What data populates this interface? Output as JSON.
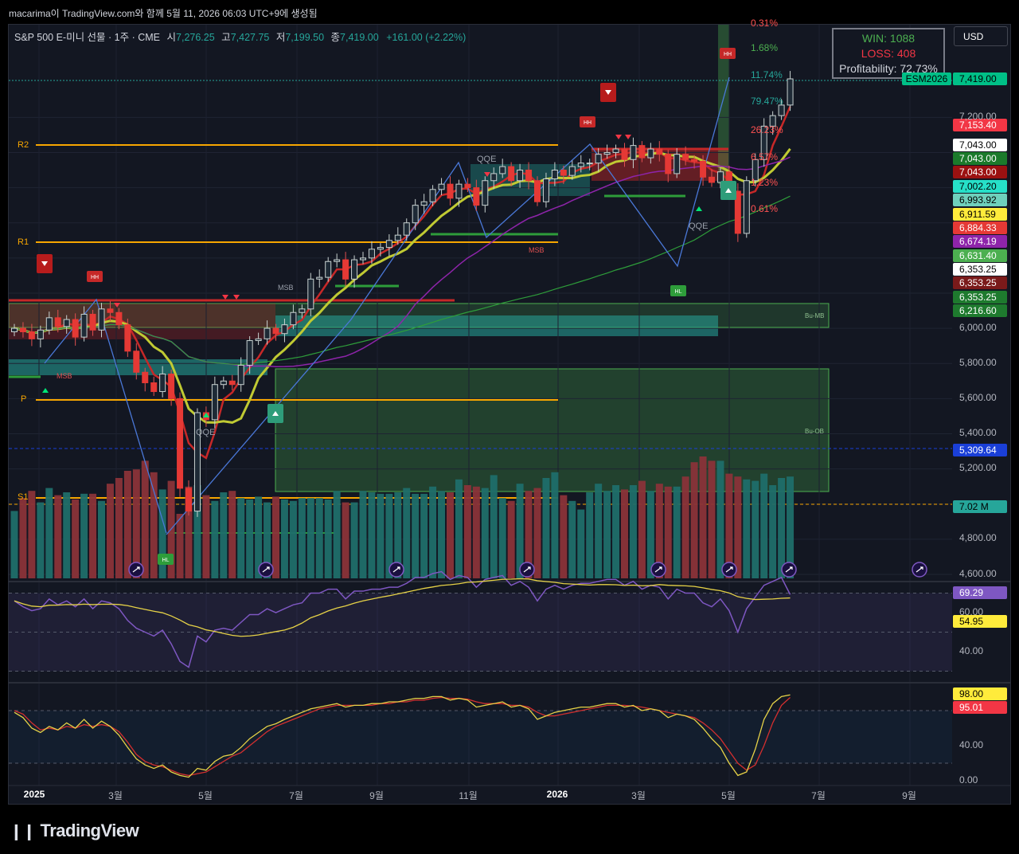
{
  "header": {
    "snapshot_text": "macarima이 TradingView.com와 함께 5월 11, 2026 06:03 UTC+9에 생성됨"
  },
  "legend": {
    "symbol": "S&P 500 E-미니 선물 · 1주 · CME",
    "open_label": "시",
    "open": "7,276.25",
    "high_label": "고",
    "high": "7,427.75",
    "low_label": "저",
    "low": "7,199.50",
    "close_label": "종",
    "close": "7,419.00",
    "change": "+161.00 (+2.22%)"
  },
  "stats": {
    "win": "WIN: 1088",
    "loss": "LOSS: 408",
    "profitability": "Profitability: 72.73%"
  },
  "currency": "USD",
  "ticker_badge": "ESM2026",
  "price_ticks": [
    "7,200.00",
    "6,000.00",
    "5,800.00",
    "5,600.00",
    "5,400.00",
    "5,200.00",
    "4,800.00",
    "4,600.00"
  ],
  "price_labels": [
    {
      "text": "7,419.00",
      "bg": "#00c087",
      "fg": "#000000"
    },
    {
      "text": "7,153.40",
      "bg": "#f23645",
      "fg": "#ffffff"
    },
    {
      "text": "7,043.00",
      "bg": "#ffffff",
      "fg": "#000000"
    },
    {
      "text": "7,043.00",
      "bg": "#1b7a2b",
      "fg": "#ffffff"
    },
    {
      "text": "7,043.00",
      "bg": "#9b1111",
      "fg": "#ffffff"
    },
    {
      "text": "7,002.20",
      "bg": "#26e0c8",
      "fg": "#000000"
    },
    {
      "text": "6,993.92",
      "bg": "#6fd0bc",
      "fg": "#000000"
    },
    {
      "text": "6,911.59",
      "bg": "#ffeb3b",
      "fg": "#000000"
    },
    {
      "text": "6,884.33",
      "bg": "#e53935",
      "fg": "#ffffff"
    },
    {
      "text": "6,674.19",
      "bg": "#8e24aa",
      "fg": "#ffffff"
    },
    {
      "text": "6,631.40",
      "bg": "#4caf50",
      "fg": "#ffffff"
    },
    {
      "text": "6,353.25",
      "bg": "#ffffff",
      "fg": "#000000"
    },
    {
      "text": "6,353.25",
      "bg": "#7a1a1a",
      "fg": "#ffffff"
    },
    {
      "text": "6,353.25",
      "bg": "#1e7a2e",
      "fg": "#ffffff"
    },
    {
      "text": "6,216.60",
      "bg": "#1e7a2e",
      "fg": "#ffffff"
    },
    {
      "text": "5,309.64",
      "bg": "#1a3fd8",
      "fg": "#ffffff"
    },
    {
      "text": "7.02 M",
      "bg": "#26a69a",
      "fg": "#000000"
    }
  ],
  "fib_pcts": [
    {
      "text": "0.31%",
      "color": "#ff5252"
    },
    {
      "text": "1.68%",
      "color": "#4caf50"
    },
    {
      "text": "11.74%",
      "color": "#26a69a"
    },
    {
      "text": "79.47%",
      "color": "#26a69a"
    },
    {
      "text": "26.23%",
      "color": "#ff5252"
    },
    {
      "text": "6.57%",
      "color": "#ff5252"
    },
    {
      "text": "1.23%",
      "color": "#ff5252"
    },
    {
      "text": "0.61%",
      "color": "#ff5252"
    }
  ],
  "levels": {
    "r2": "R2",
    "r1": "R1",
    "p": "P",
    "s1": "S1"
  },
  "annotations": {
    "qqe": "QQE",
    "msb": "MSB",
    "hh": "HH",
    "hl": "HL",
    "bu_mb": "Bu-MB",
    "bu_ob": "Bu-OB"
  },
  "x_ticks": [
    {
      "text": "2025",
      "bold": true
    },
    {
      "text": "3월",
      "bold": false
    },
    {
      "text": "5월",
      "bold": false
    },
    {
      "text": "7월",
      "bold": false
    },
    {
      "text": "9월",
      "bold": false
    },
    {
      "text": "11월",
      "bold": false
    },
    {
      "text": "2026",
      "bold": true
    },
    {
      "text": "3월",
      "bold": false
    },
    {
      "text": "5월",
      "bold": false
    },
    {
      "text": "7월",
      "bold": false
    },
    {
      "text": "9월",
      "bold": false
    }
  ],
  "rsi": {
    "ticks": [
      "60.00",
      "40.00"
    ],
    "value_label": "69.29",
    "ma_label": "54.95"
  },
  "stoch": {
    "ticks": [
      "40.00",
      "0.00"
    ],
    "k_label": "98.00",
    "d_label": "95.01"
  },
  "brand": "TradingView",
  "colors": {
    "up": "#26a69a",
    "down": "#ef5350",
    "background": "#131722",
    "pivot": "#f7a600"
  },
  "chart_data": {
    "type": "candlestick",
    "title": "S&P 500 E-미니 선물 · 1주 · CME",
    "x": [
      "2025",
      "3월",
      "5월",
      "7월",
      "9월",
      "11월",
      "2026",
      "3월",
      "5월",
      "7월",
      "9월"
    ],
    "ylim": [
      4600,
      7500
    ],
    "last": {
      "open": 7276.25,
      "high": 7427.75,
      "low": 7199.5,
      "close": 7419.0
    },
    "closes": [
      6000,
      5980,
      5940,
      5990,
      6060,
      6010,
      6050,
      5950,
      6080,
      5990,
      6110,
      6090,
      6020,
      5870,
      5750,
      5690,
      5640,
      5740,
      5600,
      5090,
      4960,
      5520,
      5480,
      5680,
      5700,
      5680,
      5790,
      5930,
      5940,
      6000,
      5970,
      6020,
      6090,
      6110,
      6280,
      6290,
      6380,
      6390,
      6280,
      6390,
      6400,
      6450,
      6460,
      6500,
      6530,
      6600,
      6700,
      6720,
      6790,
      6820,
      6740,
      6820,
      6800,
      6700,
      6840,
      6880,
      6920,
      6840,
      6900,
      6840,
      6720,
      6850,
      6900,
      6870,
      6920,
      6940,
      6940,
      6990,
      7000,
      7020,
      6960,
      7040,
      6970,
      7020,
      6990,
      6880,
      6990,
      6960,
      6950,
      6860,
      6830,
      6890,
      6780,
      6540,
      6840,
      6960,
      7150,
      7210,
      7270,
      7419
    ],
    "volumes_m": [
      4.7,
      5.6,
      6.1,
      5.3,
      6.3,
      5.8,
      6.0,
      5.5,
      5.9,
      5.9,
      5.4,
      6.6,
      7.0,
      7.5,
      7.6,
      8.2,
      7.4,
      6.2,
      6.8,
      4.5,
      6.4,
      6.5,
      5.8,
      5.4,
      6.0,
      6.1,
      5.6,
      5.5,
      5.7,
      5.3,
      5.7,
      5.5,
      5.4,
      5.6,
      5.6,
      5.6,
      5.5,
      6.1,
      5.3,
      5.3,
      6.1,
      6.0,
      5.9,
      5.9,
      6.0,
      6.3,
      5.9,
      5.9,
      6.4,
      6.1,
      6.0,
      6.9,
      6.5,
      6.4,
      6.3,
      7.2,
      5.6,
      5.4,
      6.6,
      6.1,
      6.3,
      7.0,
      7.4,
      5.8,
      5.4,
      4.8,
      6.0,
      6.6,
      6.1,
      6.5,
      6.2,
      6.5,
      6.8,
      6.1,
      6.6,
      6.4,
      6.4,
      7.1,
      8.1,
      8.5,
      8.2,
      8.2,
      7.3,
      7.1,
      6.9,
      6.8,
      7.3,
      6.5,
      7.0,
      7.1
    ],
    "rsi": [
      66,
      63,
      61,
      62,
      67,
      64,
      66,
      63,
      67,
      62,
      66,
      65,
      62,
      56,
      52,
      50,
      48,
      51,
      44,
      35,
      32,
      48,
      45,
      51,
      52,
      51,
      55,
      59,
      59,
      62,
      60,
      62,
      64,
      65,
      70,
      70,
      72,
      72,
      67,
      71,
      71,
      72,
      72,
      73,
      73,
      75,
      78,
      78,
      80,
      81,
      77,
      79,
      78,
      73,
      77,
      78,
      79,
      74,
      76,
      73,
      66,
      72,
      74,
      72,
      74,
      75,
      75,
      76,
      77,
      77,
      74,
      76,
      72,
      74,
      73,
      67,
      72,
      70,
      70,
      65,
      63,
      67,
      61,
      50,
      62,
      68,
      74,
      76,
      78,
      69.29
    ],
    "stoch_k": [
      78,
      72,
      60,
      55,
      62,
      58,
      66,
      60,
      70,
      60,
      68,
      62,
      52,
      38,
      25,
      18,
      14,
      18,
      10,
      6,
      4,
      14,
      12,
      22,
      28,
      30,
      38,
      48,
      55,
      62,
      65,
      70,
      74,
      78,
      82,
      84,
      86,
      88,
      84,
      86,
      86,
      88,
      88,
      90,
      90,
      92,
      94,
      94,
      96,
      96,
      92,
      94,
      92,
      84,
      86,
      88,
      90,
      84,
      86,
      82,
      70,
      74,
      78,
      80,
      82,
      84,
      84,
      86,
      88,
      88,
      84,
      86,
      80,
      82,
      80,
      72,
      76,
      74,
      70,
      60,
      48,
      38,
      20,
      6,
      10,
      36,
      70,
      88,
      96,
      98
    ],
    "stoch_d": [
      80,
      76,
      66,
      58,
      60,
      58,
      62,
      60,
      64,
      62,
      64,
      62,
      56,
      44,
      30,
      22,
      18,
      16,
      12,
      8,
      6,
      8,
      10,
      16,
      22,
      28,
      32,
      40,
      48,
      56,
      62,
      66,
      70,
      74,
      78,
      82,
      84,
      86,
      86,
      86,
      86,
      86,
      88,
      88,
      90,
      90,
      92,
      92,
      94,
      95,
      94,
      94,
      93,
      90,
      88,
      88,
      88,
      86,
      86,
      84,
      78,
      74,
      74,
      76,
      78,
      80,
      82,
      84,
      86,
      86,
      86,
      85,
      84,
      82,
      80,
      78,
      76,
      74,
      72,
      66,
      58,
      48,
      34,
      20,
      12,
      18,
      40,
      66,
      86,
      95.01
    ]
  }
}
